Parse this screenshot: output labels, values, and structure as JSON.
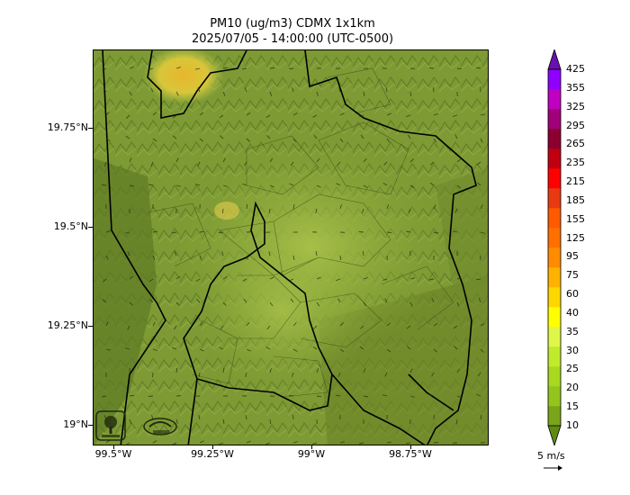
{
  "title_line1": "PM10 (ug/m3) CDMX 1x1km",
  "title_line2": "2025/07/05 - 14:00:00 (UTC-0500)",
  "lat_ticks": [
    "19.75°N",
    "19.5°N",
    "19.25°N",
    "19°N"
  ],
  "lon_ticks": [
    "99.5°W",
    "99.25°W",
    "99°W",
    "98.75°W"
  ],
  "colorbar": {
    "levels": [
      "10",
      "15",
      "20",
      "25",
      "30",
      "35",
      "40",
      "60",
      "75",
      "95",
      "125",
      "155",
      "185",
      "215",
      "235",
      "265",
      "295",
      "325",
      "355",
      "425"
    ],
    "colors": [
      "#5f8a15",
      "#7aa51a",
      "#93c51e",
      "#a8d81f",
      "#c0ea2c",
      "#e0f64a",
      "#ffff00",
      "#ffd700",
      "#ffb300",
      "#ff8c00",
      "#ff7000",
      "#ff5a00",
      "#e83a10",
      "#ff0000",
      "#c00010",
      "#8b0030",
      "#a0007a",
      "#c000c0",
      "#9000ff",
      "#6a0fb0"
    ]
  },
  "wind_reference": "5 m/s",
  "logos": [
    "sedema-logo-icon",
    "aire-logo-icon"
  ]
}
